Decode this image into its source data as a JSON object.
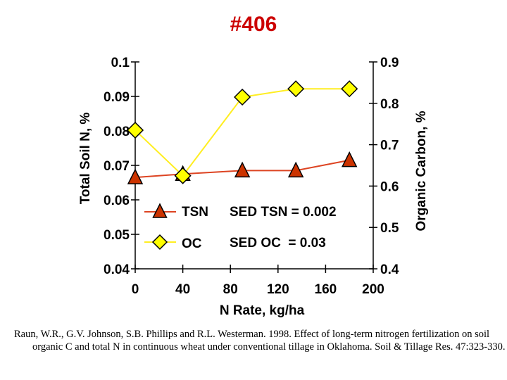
{
  "slide": {
    "title": "#406",
    "citation": "Raun, W.R., G.V. Johnson, S.B. Phillips and R.L. Westerman. 1998. Effect of long-term nitrogen fertilization on soil organic C and total N in continuous wheat under conventional tillage in Oklahoma. Soil & Tillage Res. 47:323-330."
  },
  "colors": {
    "tsn_line": "#dd4422",
    "tsn_marker": "#cc3300",
    "oc_line": "#ffee22",
    "oc_marker": "#ffff00",
    "title": "#cc0000"
  },
  "chart_data": {
    "type": "line",
    "xlabel": "N Rate, kg/ha",
    "ylabel_left": "Total Soil N, %",
    "ylabel_right": "Organic Carbon, %",
    "x_ticks": [
      "0",
      "40",
      "80",
      "120",
      "160",
      "200"
    ],
    "xlim": [
      0,
      200
    ],
    "y_left_ticks": [
      "0.04",
      "0.05",
      "0.06",
      "0.07",
      "0.08",
      "0.09",
      "0.1"
    ],
    "y_left_lim": [
      0.04,
      0.1
    ],
    "y_right_ticks": [
      "0.4",
      "0.5",
      "0.6",
      "0.7",
      "0.8",
      "0.9"
    ],
    "y_right_lim": [
      0.4,
      0.9
    ],
    "x": [
      0,
      40,
      90,
      135,
      180
    ],
    "series": [
      {
        "name": "TSN",
        "axis": "left",
        "marker": "triangle",
        "values": [
          0.0665,
          0.0675,
          0.0685,
          0.0685,
          0.0715
        ]
      },
      {
        "name": "OC",
        "axis": "right",
        "marker": "diamond",
        "values": [
          0.735,
          0.625,
          0.815,
          0.835,
          0.835
        ]
      }
    ],
    "annotations": [
      "SED TSN = 0.002",
      "SED OC  = 0.03"
    ]
  }
}
